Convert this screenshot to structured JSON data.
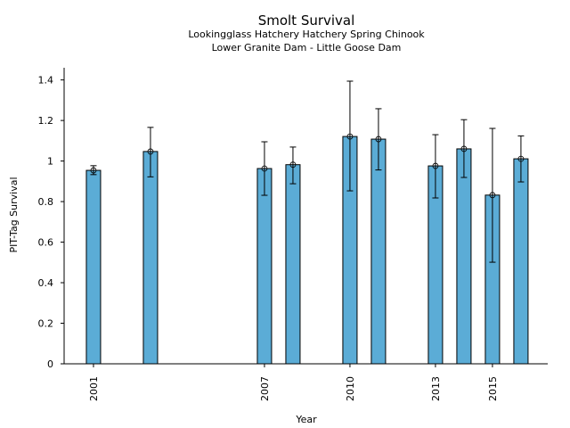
{
  "chart_data": {
    "type": "bar",
    "title": "Smolt Survival",
    "subtitle_lines": [
      "Lookingglass Hatchery Hatchery Spring Chinook",
      "Lower Granite Dam - Little Goose Dam"
    ],
    "xlabel": "Year",
    "ylabel": "PIT-Tag Survival",
    "x": [
      2001,
      2003,
      2007,
      2008,
      2010,
      2011,
      2013,
      2014,
      2015,
      2016
    ],
    "values": [
      0.954,
      1.047,
      0.963,
      0.982,
      1.121,
      1.108,
      0.976,
      1.06,
      0.832,
      1.011
    ],
    "error_low": [
      0.933,
      0.922,
      0.831,
      0.888,
      0.853,
      0.956,
      0.818,
      0.919,
      0.501,
      0.897
    ],
    "error_high": [
      0.977,
      1.166,
      1.095,
      1.069,
      1.394,
      1.258,
      1.13,
      1.204,
      1.161,
      1.124
    ],
    "xticks": [
      2001,
      2007,
      2010,
      2013,
      2015
    ],
    "yticks": [
      0,
      0.2,
      0.4,
      0.6,
      0.8,
      1,
      1.2,
      1.4
    ],
    "ytick_labels": [
      "0",
      "0.2",
      "0.4",
      "0.6",
      "0.8",
      "1",
      "1.2",
      "1.4"
    ],
    "xlim": [
      1999.97,
      2016.94
    ],
    "ylim": [
      0,
      1.46
    ],
    "bar_color": "#5bacd6",
    "grid": false,
    "legend": "none"
  }
}
